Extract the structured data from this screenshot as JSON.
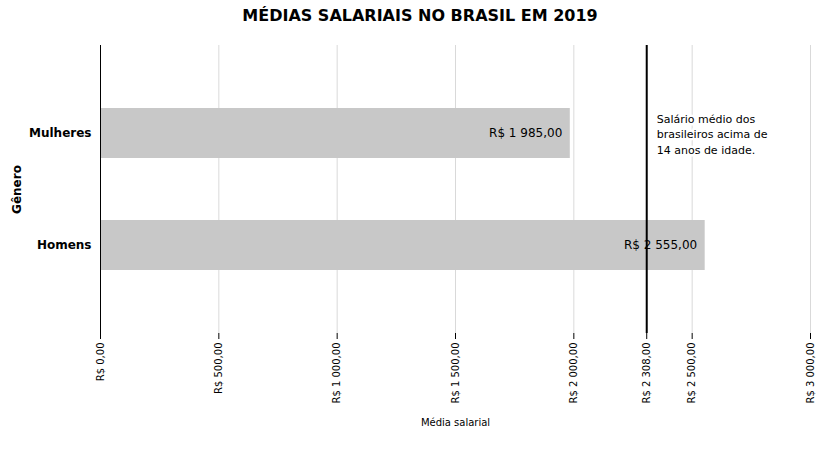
{
  "chart_data": {
    "type": "bar",
    "orientation": "horizontal",
    "title": "MÉDIAS SALARIAIS NO BRASIL EM 2019",
    "xlabel": "Média salarial",
    "ylabel": "Gênero",
    "categories": [
      "Homens",
      "Mulheres"
    ],
    "values": [
      2555,
      1985
    ],
    "value_labels": [
      "R$ 2 555,00",
      "R$ 1 985,00"
    ],
    "data_labels": true,
    "color": "#c8c8c8",
    "xlim": [
      0,
      3000
    ],
    "xticks": [
      {
        "value": 0,
        "label": "R$ 0,00"
      },
      {
        "value": 500,
        "label": "R$ 500,00"
      },
      {
        "value": 1000,
        "label": "R$ 1 000,00"
      },
      {
        "value": 1500,
        "label": "R$ 1 500,00"
      },
      {
        "value": 2000,
        "label": "R$ 2 000,00"
      },
      {
        "value": 2308,
        "label": "R$ 2 308,00"
      },
      {
        "value": 2500,
        "label": "R$ 2 500,00"
      },
      {
        "value": 3000,
        "label": "R$ 3 000,00"
      }
    ],
    "grid": true,
    "annotations": [
      {
        "text": "Salário médio dos\nbrasileiros acima de\n14 anos de idade.",
        "x": 2308
      }
    ]
  }
}
